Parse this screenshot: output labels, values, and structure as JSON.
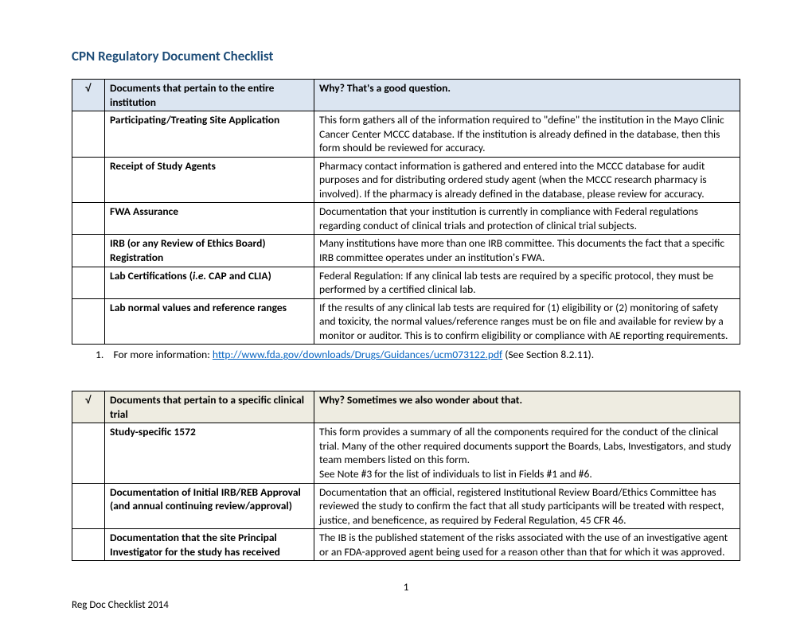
{
  "title": "CPN Regulatory Document Checklist",
  "table1": {
    "check": "√",
    "header_doc": "Documents that pertain to the entire institution",
    "header_why": "Why? That's a good question.",
    "rows": [
      {
        "doc": "Participating/Treating Site Application",
        "why": "This form gathers all of the information required to \"define\" the institution in the Mayo Clinic Cancer Center MCCC database.  If the institution is already defined in the database, then this form should be reviewed for accuracy."
      },
      {
        "doc": "Receipt of Study Agents",
        "why": "Pharmacy contact information is gathered and entered into the MCCC database for audit purposes and for distributing ordered study agent (when the MCCC research pharmacy is involved).  If the pharmacy is already defined in the database, please review for accuracy."
      },
      {
        "doc": "FWA Assurance",
        "why": "Documentation that your institution is currently in compliance with Federal regulations regarding conduct of clinical trials and protection of clinical trial subjects."
      },
      {
        "doc": "IRB (or any Review of Ethics Board) Registration",
        "why": "Many institutions have more than one IRB committee.  This documents the fact that a specific IRB committee operates under an institution's FWA."
      },
      {
        "doc_prefix": "Lab Certifications (",
        "doc_italic": "i.e.",
        "doc_suffix": " CAP and CLIA)",
        "why": "Federal Regulation: If any clinical lab tests are required by a specific protocol, they must be performed by a certified clinical lab."
      },
      {
        "doc": "Lab normal values and reference ranges",
        "why": "If the results of any clinical lab tests are required for (1) eligibility or (2) monitoring of safety and toxicity, the normal values/reference ranges must be on file and available for review by a monitor or auditor.  This is to confirm eligibility or compliance with AE reporting requirements."
      }
    ]
  },
  "footnote": {
    "num": "1.",
    "text_before": "For more information:  ",
    "link": "http://www.fda.gov/downloads/Drugs/Guidances/ucm073122.pdf",
    "text_after": "   (See Section 8.2.11)."
  },
  "table2": {
    "check": "√",
    "header_doc": "Documents that pertain to a specific clinical trial",
    "header_why": "Why? Sometimes we also wonder about that.",
    "rows": [
      {
        "doc": "Study-specific 1572",
        "why": "This form provides a summary of all the components required for the conduct of the clinical trial. Many of the other required documents support the Boards, Labs, Investigators, and study team members listed on this form.\nSee Note #3 for the list of individuals to list in Fields #1 and #6."
      },
      {
        "doc": "Documentation of Initial IRB/REB Approval  (and annual continuing review/approval)",
        "why": "Documentation that an official, registered Institutional Review Board/Ethics Committee has reviewed the study to confirm the fact that all study participants will be treated with respect, justice, and beneficence, as required by Federal Regulation, 45 CFR 46."
      },
      {
        "doc": "Documentation that the site Principal Investigator for the study has received",
        "why": "The IB is the published statement of the risks associated with the use of an investigative agent or an FDA-approved agent being used for a reason other than that for which it was approved."
      }
    ]
  },
  "page_num": "1",
  "footer": "Reg Doc Checklist 2014"
}
